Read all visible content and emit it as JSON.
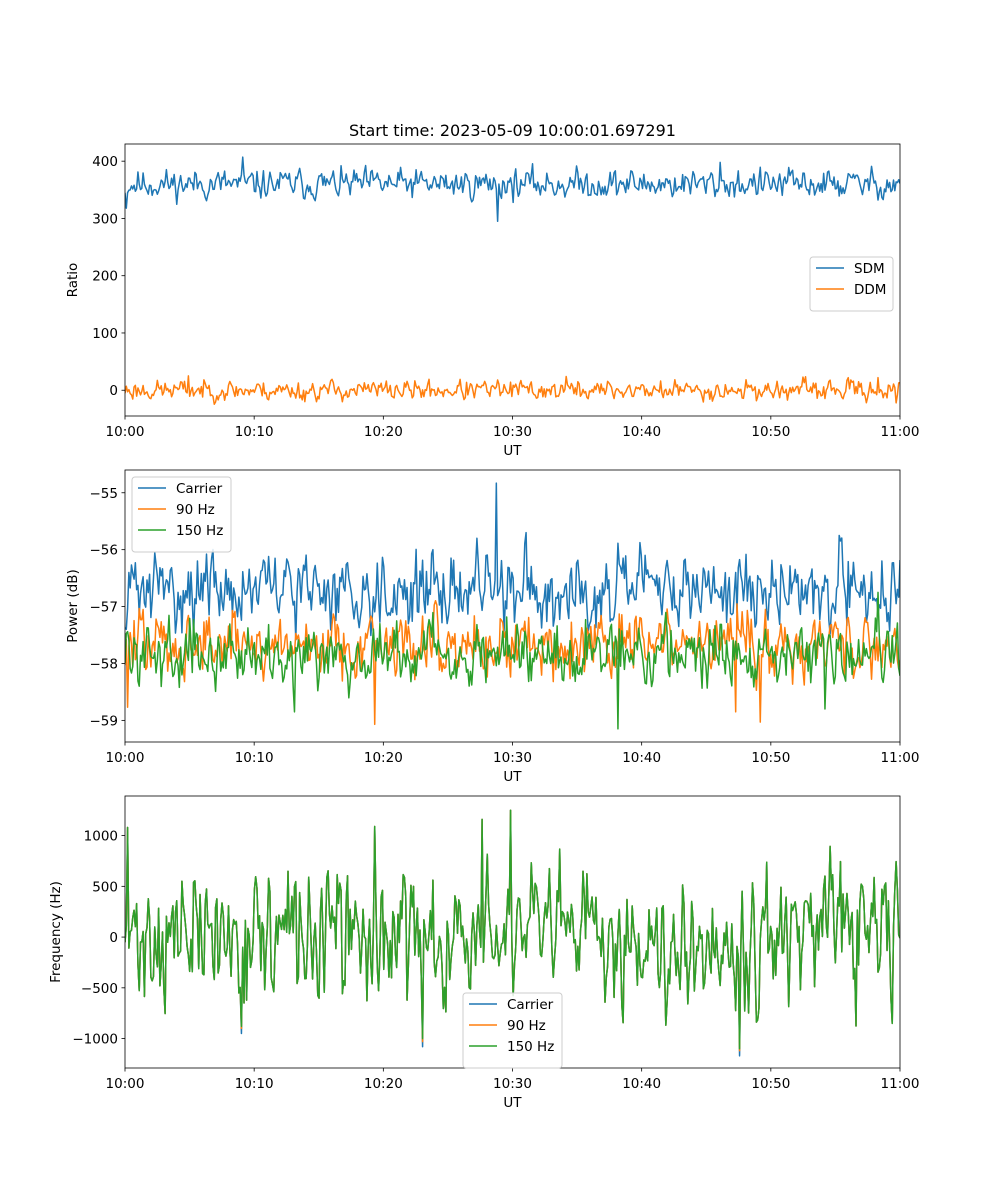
{
  "figure": {
    "title": "Start time: 2023-05-09 10:00:01.697291"
  },
  "chart_data": [
    {
      "type": "line",
      "title": "Start time: 2023-05-09 10:00:01.697291",
      "xlabel": "UT",
      "ylabel": "Ratio",
      "xlim": [
        "10:00",
        "11:00"
      ],
      "ylim": [
        -45,
        430
      ],
      "xticks": [
        "10:00",
        "10:10",
        "10:20",
        "10:30",
        "10:40",
        "10:50",
        "11:00"
      ],
      "yticks": [
        0,
        100,
        200,
        300,
        400
      ],
      "yticklabels": [
        "0",
        "100",
        "200",
        "300",
        "400"
      ],
      "grid": false,
      "legend": "center-right",
      "series": [
        {
          "name": "SDM",
          "color": "#1f77b4",
          "gen": {
            "mean": 360,
            "amp": 12,
            "seed": 11
          },
          "spikes": [
            {
              "x": 9.1,
              "y": 407
            },
            {
              "x": 28.8,
              "y": 295
            },
            {
              "x": 0.1,
              "y": 318
            },
            {
              "x": 46.1,
              "y": 398
            }
          ]
        },
        {
          "name": "DDM",
          "color": "#ff7f0e",
          "gen": {
            "mean": 0,
            "amp": 8,
            "seed": 23
          },
          "spikes": [
            {
              "x": 4.9,
              "y": 25
            },
            {
              "x": 34.2,
              "y": 24
            },
            {
              "x": 13.9,
              "y": -20
            },
            {
              "x": 58.3,
              "y": 22
            },
            {
              "x": 59.7,
              "y": -22
            }
          ]
        }
      ]
    },
    {
      "type": "line",
      "title": "",
      "xlabel": "UT",
      "ylabel": "Power (dB)",
      "xlim": [
        "10:00",
        "11:00"
      ],
      "ylim": [
        -59.38,
        -54.6
      ],
      "xticks": [
        "10:00",
        "10:10",
        "10:20",
        "10:30",
        "10:40",
        "10:50",
        "11:00"
      ],
      "yticks": [
        -59,
        -58,
        -57,
        -56,
        -55
      ],
      "yticklabels": [
        "−59",
        "−58",
        "−57",
        "−56",
        "−55"
      ],
      "grid": false,
      "legend": "top-left",
      "series": [
        {
          "name": "Carrier",
          "color": "#1f77b4",
          "gen": {
            "mean": -56.7,
            "amp": 0.3,
            "seed": 31
          },
          "spikes": [
            {
              "x": 28.7,
              "y": -54.83
            },
            {
              "x": 27.2,
              "y": -55.8
            },
            {
              "x": 31.1,
              "y": -55.7
            },
            {
              "x": 55.3,
              "y": -55.75
            },
            {
              "x": 0.1,
              "y": -57.4
            }
          ]
        },
        {
          "name": "90 Hz",
          "color": "#ff7f0e",
          "gen": {
            "mean": -57.65,
            "amp": 0.27,
            "seed": 47
          },
          "spikes": [
            {
              "x": 19.3,
              "y": -59.07
            },
            {
              "x": 49.2,
              "y": -59.03
            },
            {
              "x": 0.2,
              "y": -58.77
            },
            {
              "x": 47.3,
              "y": -58.85
            }
          ]
        },
        {
          "name": "150 Hz",
          "color": "#2ca02c",
          "gen": {
            "mean": -57.8,
            "amp": 0.25,
            "seed": 59
          },
          "spikes": [
            {
              "x": 38.2,
              "y": -59.15
            },
            {
              "x": 13.1,
              "y": -58.85
            },
            {
              "x": 54.2,
              "y": -58.8
            },
            {
              "x": 58.3,
              "y": -56.75
            }
          ]
        }
      ]
    },
    {
      "type": "line",
      "title": "",
      "xlabel": "UT",
      "ylabel": "Frequency (Hz)",
      "xlim": [
        "10:00",
        "11:00"
      ],
      "ylim": [
        -1290,
        1390
      ],
      "xticks": [
        "10:00",
        "10:10",
        "10:20",
        "10:30",
        "10:40",
        "10:50",
        "11:00"
      ],
      "yticks": [
        -1000,
        -500,
        0,
        500,
        1000
      ],
      "yticklabels": [
        "−1000",
        "−500",
        "0",
        "500",
        "1000"
      ],
      "grid": false,
      "legend": "lower-center",
      "series": [
        {
          "name": "Carrier",
          "color": "#1f77b4",
          "gen": {
            "mean": 0,
            "amp": 300,
            "seed": 71
          },
          "spikes": [
            {
              "x": 0.2,
              "y": 1080
            },
            {
              "x": 29.8,
              "y": 1250
            },
            {
              "x": 47.6,
              "y": -1170
            },
            {
              "x": 23.0,
              "y": -1080
            },
            {
              "x": 27.6,
              "y": 1160
            },
            {
              "x": 19.3,
              "y": 1090
            },
            {
              "x": 9.0,
              "y": -950
            }
          ]
        },
        {
          "name": "90 Hz",
          "color": "#ff7f0e",
          "gen": {
            "mean": 0,
            "amp": 300,
            "seed": 71
          },
          "spikes": [
            {
              "x": 0.2,
              "y": 1080
            },
            {
              "x": 29.8,
              "y": 1250
            },
            {
              "x": 47.6,
              "y": -1120
            },
            {
              "x": 23.0,
              "y": -1030
            },
            {
              "x": 27.6,
              "y": 1160
            },
            {
              "x": 19.3,
              "y": 1090
            },
            {
              "x": 9.0,
              "y": -900
            }
          ]
        },
        {
          "name": "150 Hz",
          "color": "#2ca02c",
          "gen": {
            "mean": 0,
            "amp": 300,
            "seed": 71
          },
          "spikes": [
            {
              "x": 0.2,
              "y": 1080
            },
            {
              "x": 29.8,
              "y": 1250
            },
            {
              "x": 47.6,
              "y": -1100
            },
            {
              "x": 23.0,
              "y": -1000
            },
            {
              "x": 27.6,
              "y": 1160
            },
            {
              "x": 19.3,
              "y": 1090
            },
            {
              "x": 9.0,
              "y": -880
            }
          ]
        }
      ]
    }
  ]
}
